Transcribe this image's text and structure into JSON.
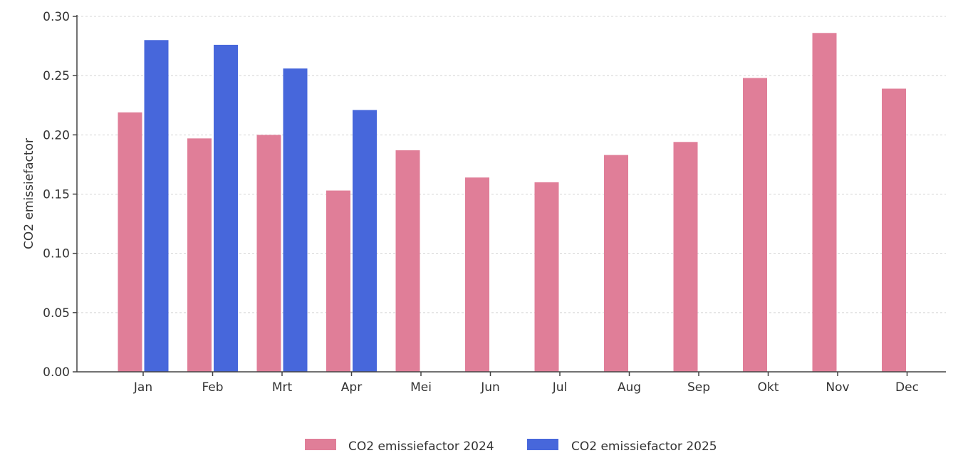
{
  "chart_data": {
    "type": "bar",
    "title": "",
    "xlabel": "",
    "ylabel": "CO2 emissiefactor",
    "ylim": [
      0,
      0.3
    ],
    "yticks": [
      "0.00",
      "0.05",
      "0.10",
      "0.15",
      "0.20",
      "0.25",
      "0.30"
    ],
    "categories": [
      "Jan",
      "Feb",
      "Mrt",
      "Apr",
      "Mei",
      "Jun",
      "Jul",
      "Aug",
      "Sep",
      "Okt",
      "Nov",
      "Dec"
    ],
    "series": [
      {
        "name": "CO2 emissiefactor 2024",
        "color": "#E07E98",
        "values": [
          0.219,
          0.197,
          0.2,
          0.153,
          0.187,
          0.164,
          0.16,
          0.183,
          0.194,
          0.248,
          0.286,
          0.239
        ]
      },
      {
        "name": "CO2 emissiefactor 2025",
        "color": "#4767DB",
        "values": [
          0.28,
          0.276,
          0.256,
          0.221,
          null,
          null,
          null,
          null,
          null,
          null,
          null,
          null
        ]
      }
    ],
    "grid": true,
    "legend_position": "bottom-center"
  }
}
